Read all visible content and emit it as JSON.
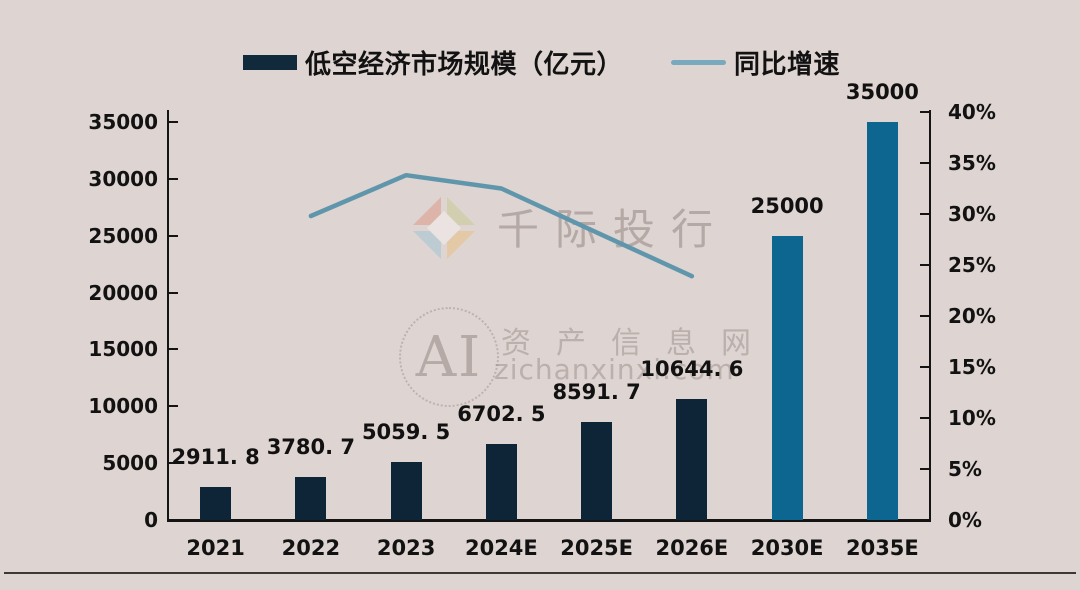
{
  "page": {
    "background": "#ded4d1",
    "axis_color": "#141414",
    "divider_color": "#3d3836"
  },
  "legend": {
    "items": [
      {
        "label": "低空经济市场规模（亿元）",
        "swatch": "bar",
        "color": "#102a3c"
      },
      {
        "label": "同比增速",
        "swatch": "line",
        "color": "#79a9bc"
      }
    ]
  },
  "chart_data": {
    "type": "bar",
    "subtype": "combo-bar-line-dual-axis",
    "categories": [
      "2021",
      "2022",
      "2023",
      "2024E",
      "2025E",
      "2026E",
      "2030E",
      "2035E"
    ],
    "series": [
      {
        "name": "低空经济市场规模（亿元）",
        "type": "bar",
        "axis": "left",
        "values": [
          2911.8,
          3780.7,
          5059.5,
          6702.5,
          8591.7,
          10644.6,
          25000,
          35000
        ],
        "labels": [
          "2911. 8",
          "3780. 7",
          "5059. 5",
          "6702. 5",
          "8591. 7",
          "10644. 6",
          "25000",
          "35000"
        ],
        "bar_colors": [
          "#0e2537",
          "#0e2537",
          "#0e2537",
          "#0e2537",
          "#0e2537",
          "#0e2537",
          "#0d6690",
          "#0d6690"
        ]
      },
      {
        "name": "同比增速",
        "type": "line",
        "axis": "right",
        "categories": [
          "2022",
          "2023",
          "2024E",
          "2025E",
          "2026E"
        ],
        "values": [
          29.8,
          33.8,
          32.5,
          28.2,
          23.9
        ],
        "color": "#6096ac"
      }
    ],
    "left_axis": {
      "min": 0,
      "max": 35000,
      "tick_interval": 5000,
      "ticks": [
        "0",
        "5000",
        "10000",
        "15000",
        "20000",
        "25000",
        "30000",
        "35000"
      ]
    },
    "right_axis": {
      "min": 0,
      "max": 40,
      "tick_interval": 5,
      "unit": "%",
      "ticks": [
        "0%",
        "5%",
        "10%",
        "15%",
        "20%",
        "25%",
        "30%",
        "35%",
        "40%"
      ]
    },
    "grid": false,
    "legend_position": "top"
  },
  "watermark": {
    "brand_cn": "千际投行",
    "ai_text": "AI",
    "site_cn": "资产信息网",
    "site_url": "zichanxinxi.com",
    "logo_colors": {
      "top_left": "#dd9a8b",
      "top_right": "#c8cc96",
      "bottom_left": "#a3c6d6",
      "bottom_right": "#e9c183",
      "hole": "#f5f1ef"
    }
  }
}
